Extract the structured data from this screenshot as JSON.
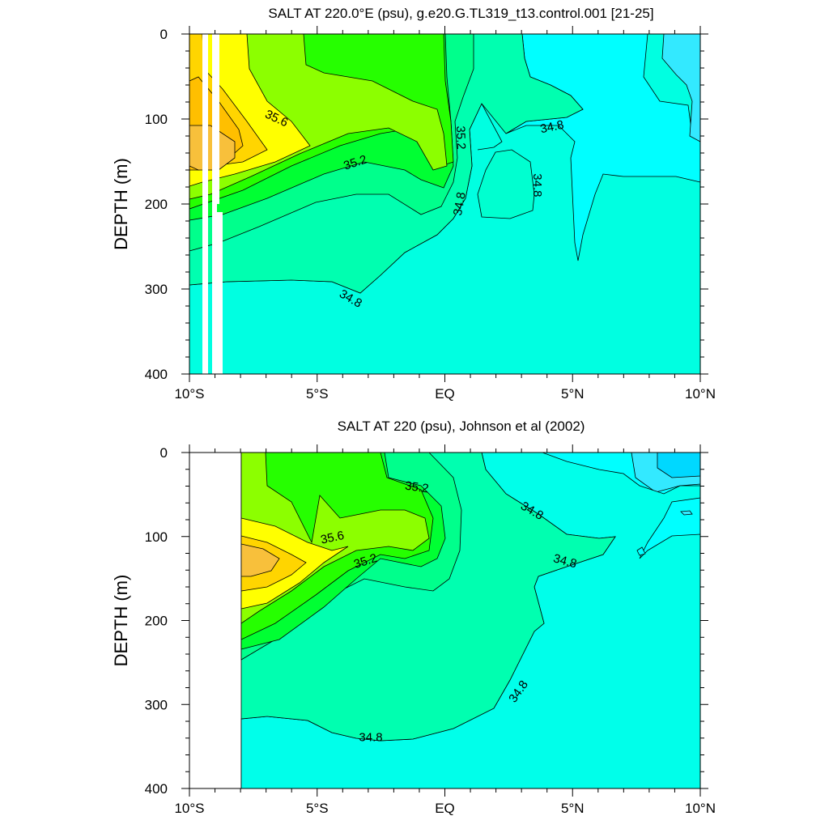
{
  "chart_data": [
    {
      "type": "contour",
      "title": "SALT AT 220.0°E (psu), g.e20.G.TL319_t13.control.001 [21-25]",
      "ylabel": "DEPTH (m)",
      "xlabel": "",
      "x_ticks": [
        "10°S",
        "5°S",
        "EQ",
        "5°N",
        "10°N"
      ],
      "y_ticks": [
        "0",
        "100",
        "200",
        "300",
        "400"
      ],
      "xlim": [
        -10,
        10
      ],
      "ylim": [
        0,
        400
      ],
      "y_inverted": true,
      "contour_labels": [
        {
          "text": "35.6",
          "lat": -6.6,
          "depth": 100,
          "angle": 25
        },
        {
          "text": "35.2",
          "lat": -3.5,
          "depth": 152,
          "angle": -18
        },
        {
          "text": "35.2",
          "lat": 0.6,
          "depth": 122,
          "angle": 88
        },
        {
          "text": "34.8",
          "lat": 4.2,
          "depth": 110,
          "angle": -12
        },
        {
          "text": "34.8",
          "lat": 3.6,
          "depth": 178,
          "angle": 90
        },
        {
          "text": "34.8",
          "lat": 0.6,
          "depth": 200,
          "angle": -80
        },
        {
          "text": "34.8",
          "lat": -3.7,
          "depth": 312,
          "angle": 30
        }
      ]
    },
    {
      "type": "contour",
      "title": "SALT AT 220 (psu), Johnson et al (2002)",
      "ylabel": "DEPTH (m)",
      "xlabel": "",
      "x_ticks": [
        "10°S",
        "5°S",
        "EQ",
        "5°N",
        "10°N"
      ],
      "y_ticks": [
        "0",
        "100",
        "200",
        "300",
        "400"
      ],
      "xlim": [
        -10,
        10
      ],
      "ylim": [
        0,
        400
      ],
      "y_inverted": true,
      "contour_labels": [
        {
          "text": "35.2",
          "lat": -1.1,
          "depth": 42,
          "angle": 8
        },
        {
          "text": "35.6",
          "lat": -4.4,
          "depth": 102,
          "angle": -12
        },
        {
          "text": "35.2",
          "lat": -3.1,
          "depth": 130,
          "angle": -18
        },
        {
          "text": "34.8",
          "lat": 3.4,
          "depth": 70,
          "angle": 30
        },
        {
          "text": "34.8",
          "lat": 4.7,
          "depth": 130,
          "angle": 15
        },
        {
          "text": "34.8",
          "lat": 2.9,
          "depth": 285,
          "angle": -55
        },
        {
          "text": "34.8",
          "lat": -2.9,
          "depth": 340,
          "angle": 0
        }
      ]
    }
  ]
}
